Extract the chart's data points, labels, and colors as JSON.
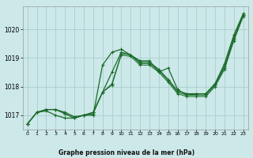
{
  "title": "Graphe pression niveau de la mer (hPa)",
  "background_color": "#cce8e8",
  "grid_color": "#aacece",
  "line_color": "#1a6b2a",
  "ylim": [
    1016.5,
    1020.8
  ],
  "yticks": [
    1017,
    1018,
    1019,
    1020
  ],
  "xlim": [
    -0.5,
    23.5
  ],
  "xticks": [
    0,
    1,
    2,
    3,
    4,
    5,
    6,
    7,
    8,
    9,
    10,
    11,
    12,
    13,
    14,
    15,
    16,
    17,
    18,
    19,
    20,
    21,
    22,
    23
  ],
  "series": [
    [
      1016.7,
      1017.1,
      1017.2,
      1017.2,
      1017.05,
      1016.9,
      1017.0,
      1017.05,
      1017.8,
      1018.05,
      1019.1,
      1019.05,
      1018.75,
      1018.75,
      1018.5,
      1018.15,
      1017.75,
      1017.65,
      1017.65,
      1017.65,
      1018.0,
      1018.6,
      1019.6,
      1020.45
    ],
    [
      1016.7,
      1017.1,
      1017.2,
      1017.2,
      1017.05,
      1016.9,
      1017.0,
      1017.1,
      1017.8,
      1018.1,
      1019.15,
      1019.1,
      1018.8,
      1018.8,
      1018.55,
      1018.2,
      1017.8,
      1017.7,
      1017.7,
      1017.7,
      1018.05,
      1018.65,
      1019.65,
      1020.5
    ],
    [
      1016.7,
      1017.1,
      1017.2,
      1017.2,
      1017.1,
      1016.95,
      1017.0,
      1017.1,
      1017.8,
      1018.5,
      1019.2,
      1019.1,
      1018.85,
      1018.85,
      1018.6,
      1018.25,
      1017.85,
      1017.75,
      1017.75,
      1017.75,
      1018.1,
      1018.7,
      1019.7,
      1020.5
    ],
    [
      1016.7,
      1017.1,
      1017.15,
      1017.0,
      1016.9,
      1016.9,
      1017.0,
      1017.0,
      1018.75,
      1019.2,
      1019.3,
      1019.1,
      1018.9,
      1018.9,
      1018.5,
      1018.65,
      1017.9,
      1017.7,
      1017.75,
      1017.75,
      1018.1,
      1018.8,
      1019.8,
      1020.55
    ]
  ]
}
